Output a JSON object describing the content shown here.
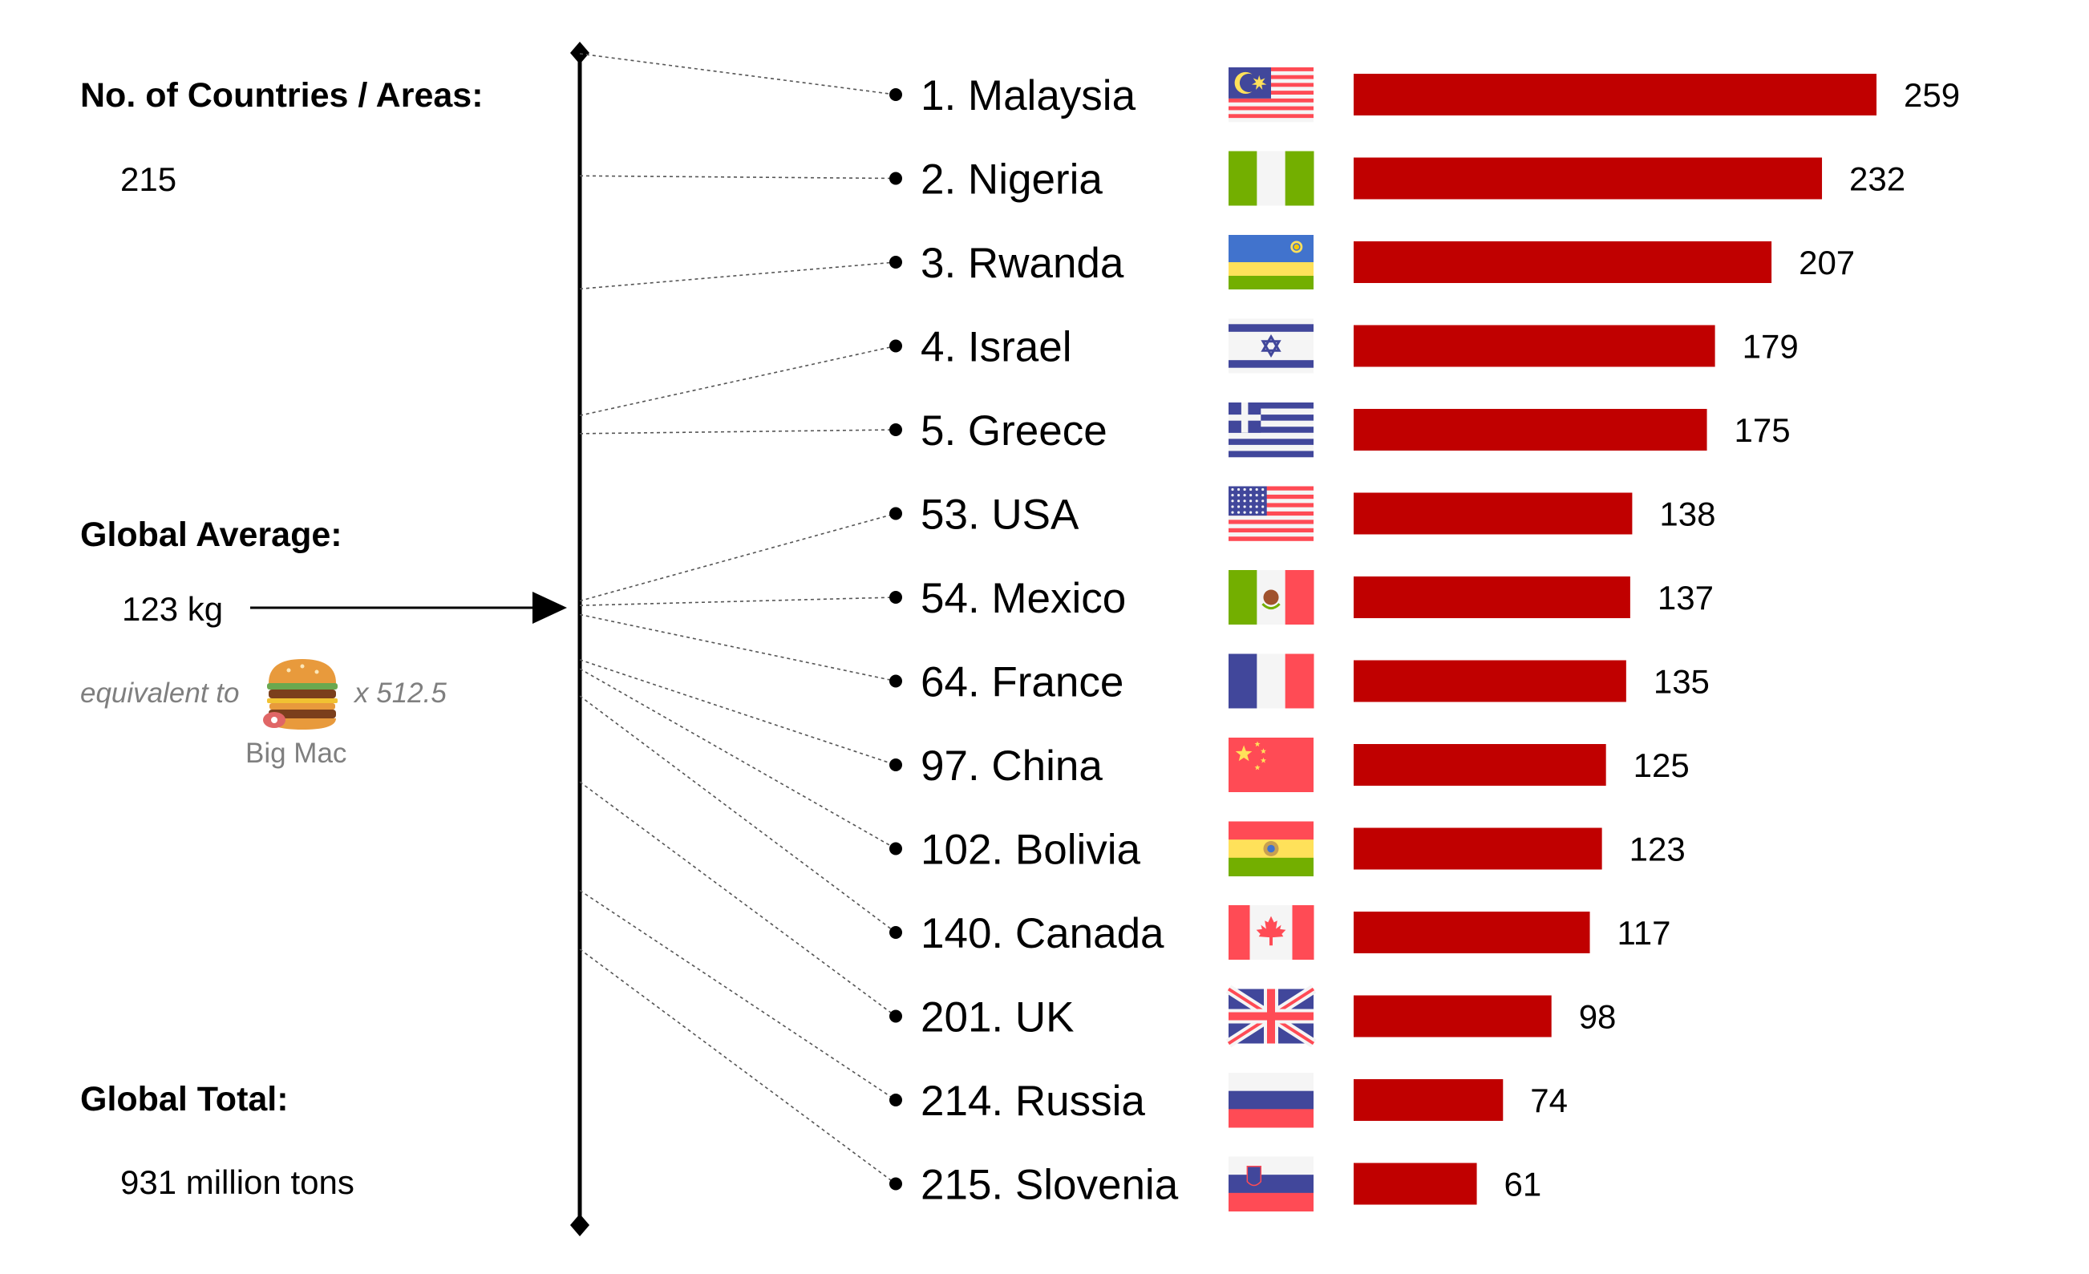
{
  "sidebar": {
    "countries_heading": "No. of Countries / Areas:",
    "countries_value": "215",
    "average_heading": "Global Average:",
    "average_value": "123 kg",
    "equivalent_prefix": "equivalent to",
    "equivalent_multiplier": "x 512.5",
    "equivalent_item": "Big Mac",
    "total_heading": "Global Total:",
    "total_value": "931 million tons"
  },
  "colors": {
    "bar": "#c00000",
    "axis": "#000000",
    "muted_text": "#7f7f7f"
  },
  "chart_data": {
    "type": "bar",
    "orientation": "horizontal",
    "title": "",
    "xlabel": "",
    "ylabel": "",
    "xlim": [
      0,
      259
    ],
    "grid": false,
    "legend": "none",
    "categories": [
      "1. Malaysia",
      "2. Nigeria",
      "3. Rwanda",
      "4. Israel",
      "5. Greece",
      "53. USA",
      "54. Mexico",
      "64. France",
      "97. China",
      "102. Bolivia",
      "140. Canada",
      "201. UK",
      "214. Russia",
      "215. Slovenia"
    ],
    "flags": [
      "malaysia-flag-icon",
      "nigeria-flag-icon",
      "rwanda-flag-icon",
      "israel-flag-icon",
      "greece-flag-icon",
      "usa-flag-icon",
      "mexico-flag-icon",
      "france-flag-icon",
      "china-flag-icon",
      "bolivia-flag-icon",
      "canada-flag-icon",
      "uk-flag-icon",
      "russia-flag-icon",
      "slovenia-flag-icon"
    ],
    "values": [
      259,
      232,
      207,
      179,
      175,
      138,
      137,
      135,
      125,
      123,
      117,
      98,
      74,
      61
    ],
    "value_labels": [
      "259",
      "232",
      "207",
      "179",
      "175",
      "138",
      "137",
      "135",
      "125",
      "123",
      "117",
      "98",
      "74",
      "61"
    ],
    "axis_range": [
      0,
      259
    ],
    "axis_marker_value": 123
  }
}
